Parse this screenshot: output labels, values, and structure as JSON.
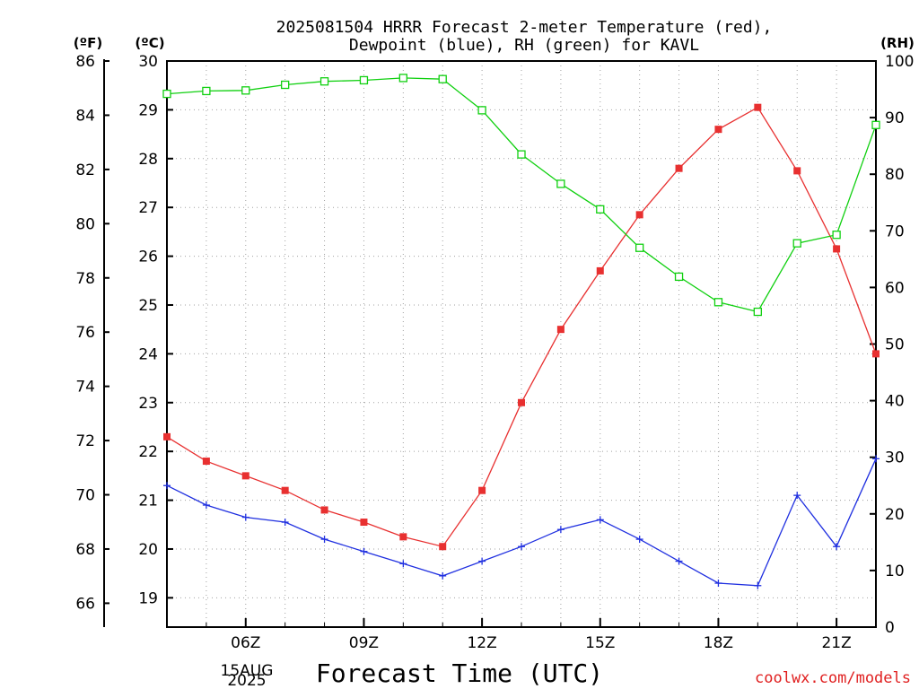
{
  "title_line1": "2025081504 HRRR Forecast 2-meter Temperature (red),",
  "title_line2": "Dewpoint (blue), RH (green) for KAVL",
  "xlabel": "Forecast Time (UTC)",
  "credit": "coolwx.com/models",
  "unit_f": "(ºF)",
  "unit_c": "(ºC)",
  "unit_rh": "(RH)",
  "date_line1": "15AUG",
  "date_line2": "2025",
  "colors": {
    "temp": "#e83030",
    "dewpoint": "#2030e0",
    "rh": "#10d010",
    "grid": "#a0a0a0",
    "credit": "#e02020"
  },
  "chart_data": {
    "type": "line",
    "x_hours": [
      4,
      5,
      6,
      7,
      8,
      9,
      10,
      11,
      12,
      13,
      14,
      15,
      16,
      17,
      18,
      19,
      20,
      21,
      22
    ],
    "x_range": [
      4,
      22
    ],
    "x_ticks": [
      {
        "hour": 6,
        "label": "06Z"
      },
      {
        "hour": 9,
        "label": "09Z"
      },
      {
        "hour": 12,
        "label": "12Z"
      },
      {
        "hour": 15,
        "label": "15Z"
      },
      {
        "hour": 18,
        "label": "18Z"
      },
      {
        "hour": 21,
        "label": "21Z"
      }
    ],
    "y_left_c": {
      "range": [
        18.4,
        30
      ],
      "ticks": [
        19,
        20,
        21,
        22,
        23,
        24,
        25,
        26,
        27,
        28,
        29,
        30
      ]
    },
    "y_left_f": {
      "ticks": [
        66,
        68,
        70,
        72,
        74,
        76,
        78,
        80,
        82,
        84,
        86
      ]
    },
    "y_right_rh": {
      "range": [
        0,
        100
      ],
      "ticks": [
        0,
        10,
        20,
        30,
        40,
        50,
        60,
        70,
        80,
        90,
        100
      ]
    },
    "grid": true,
    "series": [
      {
        "name": "Temperature (red)",
        "axis": "c",
        "marker": "filled-square",
        "values": [
          22.3,
          21.8,
          21.5,
          21.2,
          20.8,
          20.55,
          20.25,
          20.05,
          21.2,
          23.0,
          24.5,
          25.7,
          26.85,
          27.8,
          28.6,
          29.05,
          27.75,
          26.15,
          24.0
        ]
      },
      {
        "name": "Dewpoint (blue)",
        "axis": "c",
        "marker": "plus",
        "values": [
          21.3,
          20.9,
          20.65,
          20.55,
          20.2,
          19.95,
          19.7,
          19.45,
          19.75,
          20.05,
          20.4,
          20.6,
          20.2,
          19.75,
          19.3,
          19.25,
          21.1,
          20.05,
          21.85
        ]
      },
      {
        "name": "RH (green)",
        "axis": "rh",
        "marker": "open-square",
        "values": [
          94.2,
          94.7,
          94.8,
          95.8,
          96.4,
          96.6,
          97.0,
          96.8,
          91.3,
          83.5,
          78.3,
          73.8,
          67.0,
          61.9,
          57.4,
          55.7,
          67.8,
          69.3,
          88.7
        ]
      }
    ]
  }
}
